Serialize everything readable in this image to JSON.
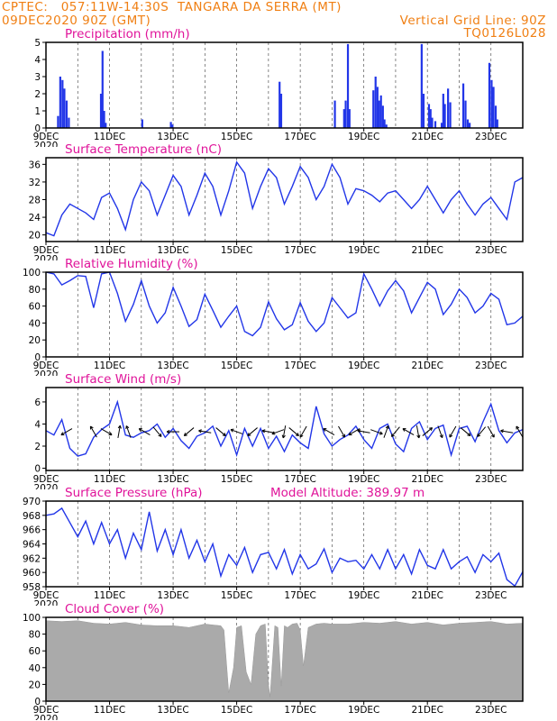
{
  "header": {
    "left_line1": "CPTEC:   057:11W-14:30S  TANGARA DA SERRA (MT)",
    "left_line2": "09DEC2020 90Z (GMT)",
    "right_line2": "Vertical Grid Line: 90Z",
    "code": "TQ0126L028"
  },
  "colors": {
    "header": "#f07f13",
    "title": "#e0149a",
    "series": "#2236e8",
    "cloud": "#aaaaaa"
  },
  "x_axis": {
    "date_labels": [
      "9DEC",
      "11DEC",
      "13DEC",
      "15DEC",
      "17DEC",
      "19DEC",
      "21DEC",
      "23DEC"
    ],
    "date_positions_days": [
      0,
      2,
      4,
      6,
      8,
      10,
      12,
      14
    ],
    "span_days": [
      0,
      15
    ],
    "year_stub": "2020"
  },
  "chart_data": [
    {
      "type": "bar",
      "title": "Precipitation (mm/h)",
      "ylim": [
        0,
        5
      ],
      "yticks": [
        "0",
        "1",
        "2",
        "3",
        "4",
        "5"
      ],
      "x_days": [
        0.38,
        0.45,
        0.52,
        0.58,
        0.65,
        0.72,
        1.73,
        1.78,
        1.83,
        1.88,
        3.03,
        3.93,
        3.98,
        7.35,
        7.4,
        9.09,
        9.38,
        9.43,
        9.5,
        9.55,
        10.3,
        10.37,
        10.43,
        10.48,
        10.54,
        10.6,
        10.65,
        10.71,
        11.82,
        11.88,
        12.05,
        12.1,
        12.15,
        12.25,
        12.45,
        12.5,
        12.55,
        12.65,
        12.72,
        13.13,
        13.2,
        13.27,
        13.33,
        13.95,
        14.02,
        14.08,
        14.15,
        14.2
      ],
      "values": [
        0.7,
        3.0,
        2.8,
        2.3,
        1.6,
        0.6,
        2.0,
        4.5,
        1.0,
        0.3,
        0.5,
        0.35,
        0.2,
        2.7,
        2.0,
        1.6,
        1.1,
        1.6,
        4.9,
        1.1,
        2.2,
        3.0,
        2.4,
        1.6,
        1.9,
        1.3,
        0.5,
        0.2,
        4.9,
        2.0,
        1.4,
        1.1,
        0.6,
        0.4,
        0.3,
        2.0,
        1.4,
        2.3,
        1.5,
        2.6,
        1.6,
        0.5,
        0.3,
        3.8,
        2.8,
        2.4,
        1.3,
        0.5
      ]
    },
    {
      "type": "line",
      "title": "Surface Temperature (nC)",
      "ylim": [
        18.5,
        37.5
      ],
      "yticks": [
        "20",
        "24",
        "28",
        "32",
        "36"
      ],
      "x_days": [
        0,
        0.25,
        0.5,
        0.75,
        1,
        1.25,
        1.5,
        1.75,
        2,
        2.25,
        2.5,
        2.75,
        3,
        3.25,
        3.5,
        3.75,
        4,
        4.25,
        4.5,
        4.75,
        5,
        5.25,
        5.5,
        5.75,
        6,
        6.25,
        6.5,
        6.75,
        7,
        7.25,
        7.5,
        7.75,
        8,
        8.25,
        8.5,
        8.75,
        9,
        9.25,
        9.5,
        9.75,
        10,
        10.25,
        10.5,
        10.75,
        11,
        11.25,
        11.5,
        11.75,
        12,
        12.25,
        12.5,
        12.75,
        13,
        13.25,
        13.5,
        13.75,
        14,
        14.25,
        14.5,
        14.75,
        15
      ],
      "values": [
        20.5,
        19.8,
        24.5,
        27,
        26,
        25,
        23.5,
        28.5,
        29.5,
        26,
        21.2,
        28,
        32,
        30,
        24.5,
        29,
        33.5,
        31,
        24.5,
        29,
        34,
        31,
        24.5,
        30,
        36.5,
        34,
        26,
        31,
        35,
        33,
        27,
        31,
        35.5,
        33,
        28,
        31,
        36,
        33,
        27,
        30.5,
        30,
        29,
        27.5,
        29.5,
        30,
        28,
        26,
        28,
        31,
        28,
        25,
        28,
        30,
        27,
        24.5,
        27,
        28.5,
        26,
        23.5,
        32,
        33
      ]
    },
    {
      "type": "line",
      "title": "Relative Humidity (%)",
      "ylim": [
        0,
        100
      ],
      "yticks": [
        "0",
        "20",
        "40",
        "60",
        "80",
        "100"
      ],
      "x_days": [
        0,
        0.25,
        0.5,
        0.75,
        1,
        1.25,
        1.5,
        1.75,
        2,
        2.25,
        2.5,
        2.75,
        3,
        3.25,
        3.5,
        3.75,
        4,
        4.25,
        4.5,
        4.75,
        5,
        5.25,
        5.5,
        5.75,
        6,
        6.25,
        6.5,
        6.75,
        7,
        7.25,
        7.5,
        7.75,
        8,
        8.25,
        8.5,
        8.75,
        9,
        9.25,
        9.5,
        9.75,
        10,
        10.25,
        10.5,
        10.75,
        11,
        11.25,
        11.5,
        11.75,
        12,
        12.25,
        12.5,
        12.75,
        13,
        13.25,
        13.5,
        13.75,
        14,
        14.25,
        14.5,
        14.75,
        15
      ],
      "values": [
        100,
        98,
        85,
        90,
        96,
        95,
        58,
        98,
        100,
        75,
        42,
        62,
        90,
        60,
        40,
        52,
        82,
        60,
        36,
        44,
        74,
        55,
        35,
        48,
        60,
        30,
        25,
        35,
        65,
        45,
        32,
        38,
        64,
        42,
        30,
        40,
        70,
        58,
        46,
        52,
        98,
        80,
        60,
        78,
        90,
        78,
        52,
        70,
        88,
        80,
        50,
        62,
        80,
        70,
        52,
        60,
        75,
        68,
        38,
        40,
        48
      ]
    },
    {
      "type": "line",
      "title": "Surface Wind (m/s)",
      "ylim": [
        -0.2,
        7.3
      ],
      "yticks": [
        "0",
        "2",
        "4",
        "6"
      ],
      "x_days": [
        0,
        0.25,
        0.5,
        0.75,
        1,
        1.25,
        1.5,
        1.75,
        2,
        2.25,
        2.5,
        2.75,
        3,
        3.25,
        3.5,
        3.75,
        4,
        4.25,
        4.5,
        4.75,
        5,
        5.25,
        5.5,
        5.75,
        6,
        6.25,
        6.5,
        6.75,
        7,
        7.25,
        7.5,
        7.75,
        8,
        8.25,
        8.5,
        8.75,
        9,
        9.25,
        9.5,
        9.75,
        10,
        10.25,
        10.5,
        10.75,
        11,
        11.25,
        11.5,
        11.75,
        12,
        12.25,
        12.5,
        12.75,
        13,
        13.25,
        13.5,
        13.75,
        14,
        14.25,
        14.5,
        14.75,
        15
      ],
      "values": [
        3.4,
        3.0,
        4.4,
        1.8,
        1.1,
        1.3,
        2.8,
        3.5,
        4.0,
        6.0,
        3.0,
        2.8,
        3.2,
        3.4,
        4.0,
        2.8,
        3.6,
        2.5,
        1.8,
        2.9,
        3.2,
        3.8,
        2.0,
        3.4,
        1.2,
        3.6,
        2.0,
        3.6,
        1.8,
        2.9,
        1.5,
        3.0,
        2.3,
        1.8,
        5.6,
        3.1,
        2.0,
        2.6,
        3.0,
        3.8,
        2.6,
        1.8,
        3.6,
        4.0,
        2.2,
        1.5,
        3.6,
        4.2,
        2.6,
        3.6,
        3.9,
        1.2,
        3.6,
        3.8,
        2.4,
        4.2,
        5.8,
        3.4,
        2.3,
        3.2,
        3.5
      ],
      "arrows_days": [
        0.65,
        1.5,
        1.9,
        2.3,
        2.6,
        3.1,
        3.5,
        4.0,
        4.5,
        5.0,
        5.5,
        6.0,
        6.5,
        7.0,
        7.3,
        7.5,
        7.8,
        8.1,
        8.9,
        9.3,
        9.7,
        10.0,
        10.4,
        10.7,
        11.0,
        11.4,
        11.7,
        12.0,
        12.4,
        12.8,
        13.2,
        13.7,
        14.0,
        14.5,
        14.9
      ],
      "arrows_deg": [
        -150,
        120,
        -30,
        80,
        110,
        150,
        -50,
        180,
        -140,
        170,
        -40,
        160,
        -140,
        170,
        -160,
        -100,
        -40,
        -120,
        150,
        -60,
        -150,
        170,
        -20,
        70,
        -130,
        150,
        -80,
        40,
        -70,
        -120,
        -40,
        -130,
        -60,
        170,
        120
      ]
    },
    {
      "type": "line",
      "title": "Surface Pressure (hPa)",
      "annotation": "Model Altitude: 389.97  m",
      "ylim": [
        958,
        970
      ],
      "yticks": [
        "958",
        "960",
        "962",
        "964",
        "966",
        "968",
        "970"
      ],
      "x_days": [
        0,
        0.25,
        0.5,
        0.75,
        1,
        1.25,
        1.5,
        1.75,
        2,
        2.25,
        2.5,
        2.75,
        3,
        3.25,
        3.5,
        3.75,
        4,
        4.25,
        4.5,
        4.75,
        5,
        5.25,
        5.5,
        5.75,
        6,
        6.25,
        6.5,
        6.75,
        7,
        7.25,
        7.5,
        7.75,
        8,
        8.25,
        8.5,
        8.75,
        9,
        9.25,
        9.5,
        9.75,
        10,
        10.25,
        10.5,
        10.75,
        11,
        11.25,
        11.5,
        11.75,
        12,
        12.25,
        12.5,
        12.75,
        13,
        13.25,
        13.5,
        13.75,
        14,
        14.25,
        14.5,
        14.75,
        15
      ],
      "values": [
        968,
        968.2,
        969,
        967,
        965,
        967.2,
        964,
        967,
        964,
        966,
        962,
        965.5,
        963.2,
        968.5,
        963,
        966,
        962.5,
        966,
        962,
        964.5,
        961.5,
        964,
        959.5,
        962.5,
        961,
        963.5,
        960,
        962.5,
        962.8,
        960.5,
        963.2,
        959.8,
        962.5,
        960.5,
        961.2,
        963.3,
        960,
        962,
        961.5,
        961.7,
        960.5,
        962.5,
        960.5,
        963.2,
        960.5,
        962.5,
        959.8,
        963.2,
        961,
        960.5,
        963.2,
        960.5,
        961.5,
        962.2,
        960,
        962.5,
        961.5,
        962.7,
        959,
        958.1,
        960.1
      ]
    },
    {
      "type": "area",
      "title": "Cloud Cover (%)",
      "ylim": [
        0,
        100
      ],
      "yticks": [
        "0",
        "20",
        "40",
        "60",
        "80",
        "100"
      ],
      "x_days": [
        0,
        0.5,
        1,
        1.5,
        2,
        2.5,
        3,
        3.5,
        4,
        4.5,
        5,
        5.25,
        5.5,
        5.6,
        5.75,
        5.9,
        6.0,
        6.15,
        6.3,
        6.45,
        6.6,
        6.75,
        6.9,
        7.0,
        7.05,
        7.2,
        7.3,
        7.4,
        7.5,
        7.6,
        7.75,
        7.9,
        8.0,
        8.1,
        8.25,
        8.5,
        8.75,
        9,
        9.5,
        10,
        10.5,
        11,
        11.5,
        12,
        12.5,
        13,
        13.5,
        14,
        14.5,
        15
      ],
      "values": [
        96,
        95,
        96,
        93,
        92,
        94,
        91,
        90,
        90,
        88,
        92,
        91,
        90,
        85,
        10,
        40,
        88,
        90,
        35,
        20,
        80,
        90,
        92,
        20,
        5,
        90,
        88,
        18,
        90,
        88,
        92,
        93,
        85,
        42,
        88,
        92,
        93,
        92,
        92,
        94,
        93,
        95,
        92,
        94,
        91,
        93,
        94,
        95,
        92,
        93
      ]
    }
  ]
}
